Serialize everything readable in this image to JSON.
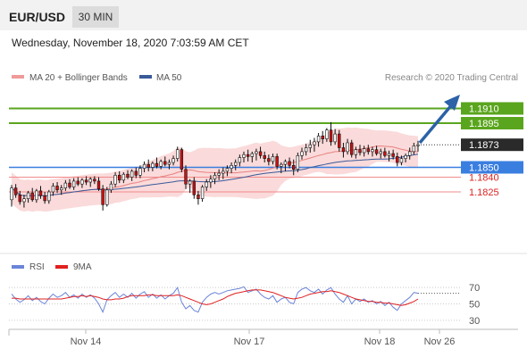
{
  "header": {
    "pair": "EUR/USD",
    "timeframe": "30 MIN"
  },
  "subtitle": "Wednesday, November 18, 2020 7:03:59 AM CET",
  "legend": {
    "ma20": "MA 20 + Bollinger Bands",
    "ma50": "MA 50",
    "copyright": "Research © 2020 Trading Central"
  },
  "rsi_legend": {
    "rsi": "RSI",
    "ma9": "9MA"
  },
  "colors": {
    "candle_up": "#ffffff",
    "candle_down": "#cc1111",
    "candle_wick": "#111111",
    "bollinger_fill": "#f9d3d3",
    "ma20": "#e88080",
    "ma50": "#3a5a9a",
    "resistance": "#5aa51e",
    "support": "#3a7ee0",
    "support_red": "#f28b8b",
    "arrow": "#2b62a8",
    "rsi": "#6b85d8",
    "rsi_ma": "#e02020"
  },
  "chart_data": [
    {
      "type": "candlestick",
      "title": "EUR/USD",
      "ylim": [
        1.1775,
        1.1935
      ],
      "x_ticks": [
        "Nov 14",
        "Nov 17",
        "Nov 18",
        "Nov 26"
      ],
      "series": [
        {
          "name": "MA 20 + Bollinger Bands",
          "type": "line_band"
        },
        {
          "name": "MA 50",
          "type": "line"
        }
      ],
      "levels": [
        {
          "value": 1.191,
          "label": "1.1910",
          "kind": "resistance"
        },
        {
          "value": 1.1895,
          "label": "1.1895",
          "kind": "resistance"
        },
        {
          "value": 1.1873,
          "label": "1.1873",
          "kind": "last_price"
        },
        {
          "value": 1.185,
          "label": "1.1850",
          "kind": "pivot"
        },
        {
          "value": 1.184,
          "label": "1.1840",
          "kind": "support"
        },
        {
          "value": 1.1825,
          "label": "1.1825",
          "kind": "support"
        }
      ],
      "candles": [
        [
          1.1817,
          1.1832,
          1.181,
          1.1829
        ],
        [
          1.1829,
          1.1833,
          1.1819,
          1.1822
        ],
        [
          1.1822,
          1.1826,
          1.1812,
          1.1815
        ],
        [
          1.1815,
          1.1822,
          1.1809,
          1.1818
        ],
        [
          1.1818,
          1.1826,
          1.1814,
          1.1824
        ],
        [
          1.1824,
          1.1829,
          1.1815,
          1.1817
        ],
        [
          1.1817,
          1.1828,
          1.1814,
          1.1826
        ],
        [
          1.1826,
          1.1831,
          1.1818,
          1.1821
        ],
        [
          1.1821,
          1.1825,
          1.1813,
          1.1816
        ],
        [
          1.1816,
          1.1827,
          1.1813,
          1.1825
        ],
        [
          1.1825,
          1.1834,
          1.1821,
          1.1831
        ],
        [
          1.1831,
          1.1835,
          1.1824,
          1.1827
        ],
        [
          1.1827,
          1.1832,
          1.1822,
          1.1829
        ],
        [
          1.1829,
          1.1837,
          1.1826,
          1.1834
        ],
        [
          1.1834,
          1.1838,
          1.1828,
          1.183
        ],
        [
          1.183,
          1.1839,
          1.1827,
          1.1836
        ],
        [
          1.1836,
          1.184,
          1.1831,
          1.1833
        ],
        [
          1.1833,
          1.1839,
          1.1829,
          1.1837
        ],
        [
          1.1837,
          1.1841,
          1.1832,
          1.1835
        ],
        [
          1.1835,
          1.184,
          1.183,
          1.1838
        ],
        [
          1.1838,
          1.1841,
          1.1833,
          1.1836
        ],
        [
          1.1836,
          1.184,
          1.1826,
          1.1828
        ],
        [
          1.1828,
          1.1832,
          1.1806,
          1.1812
        ],
        [
          1.1812,
          1.183,
          1.181,
          1.1827
        ],
        [
          1.1827,
          1.1836,
          1.1824,
          1.1833
        ],
        [
          1.1833,
          1.1845,
          1.183,
          1.1842
        ],
        [
          1.1842,
          1.1846,
          1.1834,
          1.1837
        ],
        [
          1.1837,
          1.1845,
          1.1834,
          1.1843
        ],
        [
          1.1843,
          1.1847,
          1.1838,
          1.184
        ],
        [
          1.184,
          1.1848,
          1.1836,
          1.1846
        ],
        [
          1.1846,
          1.185,
          1.1839,
          1.1842
        ],
        [
          1.1842,
          1.1852,
          1.1839,
          1.1849
        ],
        [
          1.1849,
          1.1856,
          1.1845,
          1.1853
        ],
        [
          1.1853,
          1.1858,
          1.1846,
          1.185
        ],
        [
          1.185,
          1.1856,
          1.1846,
          1.1854
        ],
        [
          1.1854,
          1.186,
          1.1849,
          1.1851
        ],
        [
          1.1851,
          1.1858,
          1.1848,
          1.1856
        ],
        [
          1.1856,
          1.1861,
          1.1851,
          1.1853
        ],
        [
          1.1853,
          1.1858,
          1.1848,
          1.1855
        ],
        [
          1.1855,
          1.1862,
          1.1852,
          1.1859
        ],
        [
          1.1859,
          1.1871,
          1.1856,
          1.1868
        ],
        [
          1.1868,
          1.187,
          1.1845,
          1.1848
        ],
        [
          1.1848,
          1.1852,
          1.1828,
          1.1833
        ],
        [
          1.1833,
          1.1838,
          1.1824,
          1.1836
        ],
        [
          1.1836,
          1.184,
          1.1818,
          1.1822
        ],
        [
          1.1822,
          1.1826,
          1.1812,
          1.1818
        ],
        [
          1.1818,
          1.1832,
          1.1815,
          1.183
        ],
        [
          1.183,
          1.1838,
          1.1826,
          1.1835
        ],
        [
          1.1835,
          1.1842,
          1.1829,
          1.1838
        ],
        [
          1.1838,
          1.1845,
          1.1833,
          1.1842
        ],
        [
          1.1842,
          1.1848,
          1.1837,
          1.1844
        ],
        [
          1.1844,
          1.185,
          1.1838,
          1.1846
        ],
        [
          1.1846,
          1.1852,
          1.1841,
          1.1849
        ],
        [
          1.1849,
          1.1855,
          1.1844,
          1.1852
        ],
        [
          1.1852,
          1.1858,
          1.1847,
          1.1855
        ],
        [
          1.1855,
          1.1863,
          1.1851,
          1.186
        ],
        [
          1.186,
          1.1866,
          1.1855,
          1.1863
        ],
        [
          1.1863,
          1.1868,
          1.1856,
          1.1861
        ],
        [
          1.1861,
          1.1866,
          1.1855,
          1.1864
        ],
        [
          1.1864,
          1.1869,
          1.1857,
          1.1866
        ],
        [
          1.1866,
          1.1871,
          1.1859,
          1.1862
        ],
        [
          1.1862,
          1.1866,
          1.1855,
          1.1859
        ],
        [
          1.1859,
          1.1863,
          1.1852,
          1.1856
        ],
        [
          1.1856,
          1.1864,
          1.1853,
          1.1861
        ],
        [
          1.1861,
          1.1864,
          1.1848,
          1.1851
        ],
        [
          1.1851,
          1.1855,
          1.1844,
          1.1853
        ],
        [
          1.1853,
          1.1858,
          1.1846,
          1.1856
        ],
        [
          1.1856,
          1.186,
          1.1849,
          1.1852
        ],
        [
          1.1852,
          1.1858,
          1.1842,
          1.1848
        ],
        [
          1.1848,
          1.1865,
          1.1845,
          1.1862
        ],
        [
          1.1862,
          1.187,
          1.1858,
          1.1866
        ],
        [
          1.1866,
          1.1874,
          1.1862,
          1.187
        ],
        [
          1.187,
          1.1878,
          1.1865,
          1.1873
        ],
        [
          1.1873,
          1.188,
          1.1866,
          1.1876
        ],
        [
          1.1876,
          1.1885,
          1.1871,
          1.1882
        ],
        [
          1.1882,
          1.1887,
          1.1874,
          1.1879
        ],
        [
          1.1879,
          1.189,
          1.1876,
          1.1888
        ],
        [
          1.1888,
          1.1896,
          1.1872,
          1.1876
        ],
        [
          1.1876,
          1.1889,
          1.1873,
          1.1884
        ],
        [
          1.1884,
          1.1888,
          1.1866,
          1.187
        ],
        [
          1.187,
          1.1875,
          1.186,
          1.1866
        ],
        [
          1.1866,
          1.1879,
          1.1863,
          1.1875
        ],
        [
          1.1875,
          1.1878,
          1.186,
          1.1863
        ],
        [
          1.1863,
          1.1871,
          1.1859,
          1.1868
        ],
        [
          1.1868,
          1.1873,
          1.1862,
          1.1865
        ],
        [
          1.1865,
          1.1872,
          1.1861,
          1.1869
        ],
        [
          1.1869,
          1.1873,
          1.1863,
          1.1866
        ],
        [
          1.1866,
          1.1871,
          1.1861,
          1.1868
        ],
        [
          1.1868,
          1.1872,
          1.1862,
          1.1864
        ],
        [
          1.1864,
          1.1869,
          1.1859,
          1.1866
        ],
        [
          1.1866,
          1.187,
          1.186,
          1.1862
        ],
        [
          1.1862,
          1.1867,
          1.1856,
          1.1864
        ],
        [
          1.1864,
          1.1868,
          1.1858,
          1.1861
        ],
        [
          1.1861,
          1.1865,
          1.1851,
          1.1855
        ],
        [
          1.1855,
          1.1862,
          1.1852,
          1.1859
        ],
        [
          1.1859,
          1.1864,
          1.1855,
          1.1862
        ],
        [
          1.1862,
          1.187,
          1.1858,
          1.1866
        ],
        [
          1.1866,
          1.1875,
          1.1863,
          1.1872
        ],
        [
          1.1872,
          1.1877,
          1.1866,
          1.1873
        ]
      ]
    },
    {
      "type": "line",
      "title": "RSI",
      "ylim": [
        20,
        80
      ],
      "y_ticks": [
        70,
        50,
        30
      ],
      "series": [
        {
          "name": "RSI",
          "values": [
            62,
            56,
            52,
            55,
            60,
            54,
            58,
            53,
            50,
            57,
            62,
            58,
            60,
            64,
            58,
            61,
            57,
            62,
            58,
            61,
            57,
            50,
            40,
            55,
            60,
            64,
            58,
            62,
            58,
            63,
            57,
            62,
            65,
            58,
            62,
            57,
            61,
            56,
            60,
            63,
            70,
            52,
            44,
            48,
            42,
            40,
            52,
            58,
            62,
            64,
            62,
            64,
            66,
            67,
            68,
            69,
            71,
            64,
            66,
            68,
            62,
            58,
            56,
            60,
            52,
            56,
            58,
            52,
            50,
            64,
            68,
            70,
            66,
            64,
            68,
            62,
            67,
            70,
            62,
            56,
            52,
            60,
            50,
            56,
            53,
            56,
            52,
            54,
            50,
            53,
            48,
            52,
            46,
            42,
            50,
            54,
            58,
            64,
            63
          ]
        },
        {
          "name": "9MA",
          "values": [
            57,
            57,
            56,
            56,
            56,
            56,
            56,
            56,
            56,
            56,
            56,
            56,
            56,
            57,
            58,
            59,
            59,
            60,
            59,
            60,
            59,
            58,
            56,
            55,
            55,
            56,
            56,
            57,
            59,
            60,
            60,
            60,
            60,
            61,
            61,
            60,
            60,
            60,
            60,
            60,
            61,
            60,
            58,
            56,
            54,
            52,
            50,
            49,
            50,
            52,
            54,
            56,
            59,
            61,
            63,
            64,
            65,
            66,
            67,
            67,
            67,
            66,
            65,
            64,
            62,
            60,
            58,
            57,
            56,
            57,
            58,
            60,
            62,
            63,
            64,
            65,
            65,
            66,
            65,
            64,
            62,
            60,
            58,
            56,
            55,
            54,
            53,
            53,
            52,
            52,
            51,
            51,
            50,
            49,
            48,
            49,
            51,
            53,
            56
          ]
        }
      ]
    }
  ]
}
